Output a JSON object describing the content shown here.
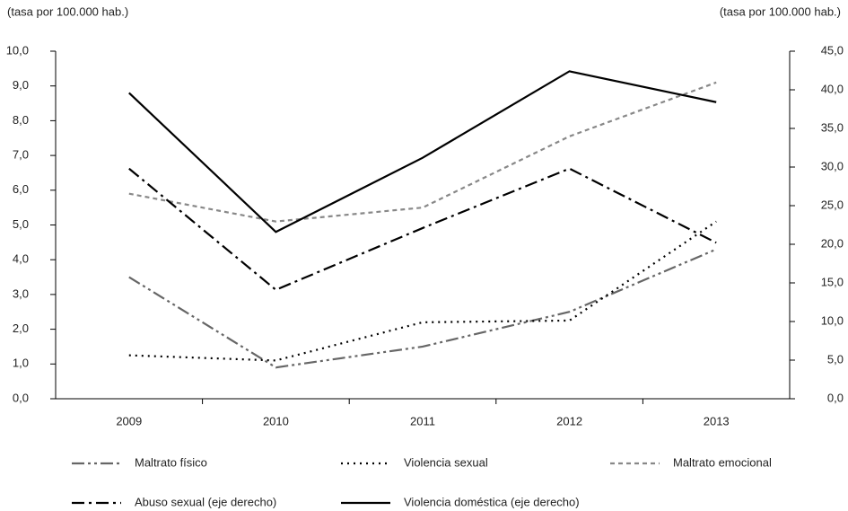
{
  "chart_data": {
    "type": "line",
    "y_label": "(tasa por 100.000 hab.)",
    "y2_label": "(tasa por 100.000 hab.)",
    "categories": [
      "2009",
      "2010",
      "2011",
      "2012",
      "2013"
    ],
    "ylim": [
      0,
      10
    ],
    "yticks": [
      {
        "value": 0,
        "label": "0,0"
      },
      {
        "value": 1,
        "label": "1,0"
      },
      {
        "value": 2,
        "label": "2,0"
      },
      {
        "value": 3,
        "label": "3,0"
      },
      {
        "value": 4,
        "label": "4,0"
      },
      {
        "value": 5,
        "label": "5,0"
      },
      {
        "value": 6,
        "label": "6,0"
      },
      {
        "value": 7,
        "label": "7,0"
      },
      {
        "value": 8,
        "label": "8,0"
      },
      {
        "value": 9,
        "label": "9,0"
      },
      {
        "value": 10,
        "label": "10,0"
      }
    ],
    "y2lim": [
      0,
      45
    ],
    "y2ticks": [
      {
        "value": 0,
        "label": "0,0"
      },
      {
        "value": 5,
        "label": "5,0"
      },
      {
        "value": 10,
        "label": "10,0"
      },
      {
        "value": 15,
        "label": "15,0"
      },
      {
        "value": 20,
        "label": "20,0"
      },
      {
        "value": 25,
        "label": "25,0"
      },
      {
        "value": 30,
        "label": "30,0"
      },
      {
        "value": 35,
        "label": "35,0"
      },
      {
        "value": 40,
        "label": "40,0"
      },
      {
        "value": 45,
        "label": "45,0"
      }
    ],
    "grid": false,
    "legend": "bottom",
    "series": [
      {
        "name": "Maltrato físico",
        "color": "#666666",
        "line_style": "dash-dot-dot",
        "values": [
          3.5,
          0.9,
          1.5,
          2.5,
          4.3
        ]
      },
      {
        "name": "Violencia sexual",
        "color": "#000000",
        "line_style": "dotted",
        "values": [
          1.25,
          1.1,
          2.2,
          2.25,
          5.1
        ]
      },
      {
        "name": "Maltrato emocional",
        "color": "#888888",
        "line_style": "dashed",
        "values": [
          5.9,
          5.1,
          5.5,
          7.55,
          9.1
        ]
      },
      {
        "name": "Abuso sexual (eje derecho)",
        "color": "#000000",
        "line_style": "dash-dot",
        "axis": "y2",
        "values": [
          29.8,
          14.1,
          22.1,
          29.8,
          20.2
        ]
      },
      {
        "name": "Violencia doméstica (eje derecho)",
        "color": "#000000",
        "line_style": "solid",
        "axis": "y2",
        "values": [
          39.6,
          21.6,
          31.2,
          42.4,
          38.4
        ]
      }
    ]
  }
}
